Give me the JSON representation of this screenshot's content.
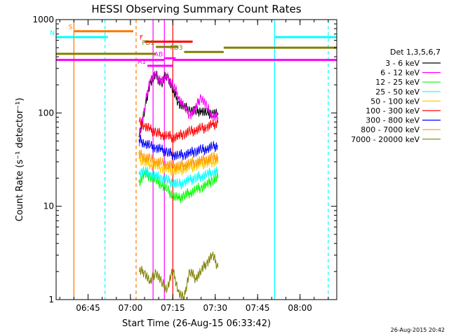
{
  "chart_data": {
    "type": "line",
    "title": "HESSI Observing Summary Count Rates",
    "xlabel": "Start Time (26-Aug-15 06:33:42)",
    "ylabel": "Count Rate (s⁻¹ detector⁻¹)",
    "y_scale": "log",
    "ylim": [
      1,
      1000
    ],
    "xlim": [
      "06:33:42",
      "08:13:00"
    ],
    "y_ticks": [
      {
        "value": 1,
        "label": "1"
      },
      {
        "value": 10,
        "label": "10"
      },
      {
        "value": 100,
        "label": "100"
      },
      {
        "value": 1000,
        "label": "1000"
      }
    ],
    "x_ticks": [
      {
        "value": "06:45",
        "label": "06:45"
      },
      {
        "value": "07:00",
        "label": "07:00"
      },
      {
        "value": "07:15",
        "label": "07:15"
      },
      {
        "value": "07:30",
        "label": "07:30"
      },
      {
        "value": "07:45",
        "label": "07:45"
      },
      {
        "value": "08:00",
        "label": "08:00"
      }
    ],
    "grid": false,
    "legend_position": "right",
    "legend_title": "Det 1,3,5,6,7",
    "series": [
      {
        "name": "3 - 6 keV",
        "color": "#000000",
        "x": [
          "07:03",
          "07:05",
          "07:07",
          "07:09",
          "07:11",
          "07:13",
          "07:15",
          "07:17",
          "07:19",
          "07:21",
          "07:23",
          "07:25",
          "07:27",
          "07:29",
          "07:31"
        ],
        "values": [
          55,
          100,
          210,
          250,
          205,
          260,
          170,
          130,
          115,
          108,
          103,
          106,
          98,
          100,
          95
        ]
      },
      {
        "name": "6 - 12 keV",
        "color": "#ff00ff",
        "x": [
          "07:03",
          "07:05",
          "07:07",
          "07:09",
          "07:11",
          "07:13",
          "07:15",
          "07:17",
          "07:19",
          "07:21",
          "07:23",
          "07:25",
          "07:27",
          "07:29",
          "07:31"
        ],
        "values": [
          45,
          105,
          230,
          250,
          225,
          240,
          200,
          150,
          115,
          95,
          110,
          150,
          115,
          93,
          90
        ]
      },
      {
        "name": "12 - 25 keV",
        "color": "#00ff00",
        "x": [
          "07:03",
          "07:05",
          "07:07",
          "07:09",
          "07:11",
          "07:13",
          "07:15",
          "07:17",
          "07:19",
          "07:21",
          "07:23",
          "07:25",
          "07:27",
          "07:29",
          "07:31"
        ],
        "values": [
          18,
          22,
          21,
          19,
          17,
          15,
          13,
          12,
          13,
          14,
          15,
          16,
          17,
          19,
          20
        ]
      },
      {
        "name": "25 - 50 keV",
        "color": "#00ffff",
        "x": [
          "07:03",
          "07:05",
          "07:07",
          "07:09",
          "07:11",
          "07:13",
          "07:15",
          "07:17",
          "07:19",
          "07:21",
          "07:23",
          "07:25",
          "07:27",
          "07:29",
          "07:31"
        ],
        "values": [
          23,
          24,
          22,
          21,
          20,
          19,
          18,
          17,
          18,
          19,
          20,
          21,
          22,
          23,
          24
        ]
      },
      {
        "name": "50 - 100 keV",
        "color": "#ffcc00",
        "x": [
          "07:03",
          "07:05",
          "07:07",
          "07:09",
          "07:11",
          "07:13",
          "07:15",
          "07:17",
          "07:19",
          "07:21",
          "07:23",
          "07:25",
          "07:27",
          "07:29",
          "07:31"
        ],
        "values": [
          32,
          30,
          28,
          27,
          26,
          25,
          24,
          24,
          25,
          26,
          27,
          28,
          29,
          30,
          31
        ]
      },
      {
        "name": "100 - 300 keV",
        "color": "#ff0000",
        "x": [
          "07:03",
          "07:05",
          "07:07",
          "07:09",
          "07:11",
          "07:13",
          "07:15",
          "07:17",
          "07:19",
          "07:21",
          "07:23",
          "07:25",
          "07:27",
          "07:29",
          "07:31"
        ],
        "values": [
          80,
          72,
          66,
          62,
          59,
          57,
          55,
          56,
          60,
          63,
          65,
          68,
          70,
          74,
          78
        ]
      },
      {
        "name": "300 - 800 keV",
        "color": "#0000ff",
        "x": [
          "07:03",
          "07:05",
          "07:07",
          "07:09",
          "07:11",
          "07:13",
          "07:15",
          "07:17",
          "07:19",
          "07:21",
          "07:23",
          "07:25",
          "07:27",
          "07:29",
          "07:31"
        ],
        "values": [
          52,
          47,
          44,
          42,
          40,
          38,
          36,
          35,
          36,
          37,
          39,
          40,
          41,
          43,
          45
        ]
      },
      {
        "name": "800 - 7000 keV",
        "color": "#ff9900",
        "x": [
          "07:03",
          "07:05",
          "07:07",
          "07:09",
          "07:11",
          "07:13",
          "07:15",
          "07:17",
          "07:19",
          "07:21",
          "07:23",
          "07:25",
          "07:27",
          "07:29",
          "07:31"
        ],
        "values": [
          36,
          34,
          32,
          30,
          29,
          28,
          27,
          27,
          28,
          29,
          30,
          31,
          32,
          33,
          34
        ]
      },
      {
        "name": "7000 - 20000 keV",
        "color": "#808000",
        "x": [
          "07:03",
          "07:05",
          "07:07",
          "07:09",
          "07:11",
          "07:13",
          "07:15",
          "07:17",
          "07:19",
          "07:21",
          "07:23",
          "07:25",
          "07:27",
          "07:29",
          "07:31"
        ],
        "values": [
          2,
          2,
          1.5,
          2,
          1.5,
          1.3,
          2,
          1.2,
          1,
          2,
          1.7,
          2,
          2.5,
          3,
          2.2
        ]
      }
    ],
    "annotation_lines": [
      {
        "name": "S",
        "color": "#ff7700",
        "dashed": false,
        "x": "06:40"
      },
      {
        "name": "N",
        "color": "#00ffff",
        "dashed": true,
        "x": "06:51"
      },
      {
        "name": "",
        "color": "#ff7700",
        "dashed": true,
        "x": "07:02"
      },
      {
        "name": "",
        "color": "#00ffff",
        "dashed": false,
        "x": "07:51"
      },
      {
        "name": "",
        "color": "#00ffff",
        "dashed": true,
        "x": "08:10"
      },
      {
        "name": "",
        "color": "#ff00ff",
        "dashed": false,
        "x": "07:08"
      },
      {
        "name": "",
        "color": "#ff00ff",
        "dashed": false,
        "x": "07:12"
      },
      {
        "name": "",
        "color": "#ff0000",
        "dashed": false,
        "x": "07:15"
      }
    ],
    "bars": [
      {
        "label": "S",
        "color": "#ff7700",
        "y": 750,
        "x_start": "06:40",
        "x_end": "07:01"
      },
      {
        "label": "N",
        "color": "#00ffff",
        "y": 650,
        "x_start": "06:33:42",
        "x_end": "06:52"
      },
      {
        "label": "",
        "color": "#00ffff",
        "y": 650,
        "x_start": "07:51",
        "x_end": "08:13"
      },
      {
        "label": "F",
        "color": "#ff0000",
        "y": 580,
        "x_start": "07:05",
        "x_end": "07:22"
      },
      {
        "label": "FD1",
        "color": "#808000",
        "y": 510,
        "x_start": "07:09",
        "x_end": "07:17"
      },
      {
        "label": "FD3",
        "color": "#808000",
        "y": 450,
        "x_start": "07:19",
        "x_end": "07:33"
      },
      {
        "label": "",
        "color": "#808000",
        "y": 430,
        "x_start": "06:33:42",
        "x_end": "07:09"
      },
      {
        "label": "",
        "color": "#808000",
        "y": 500,
        "x_start": "07:33",
        "x_end": "08:13"
      },
      {
        "label": "AB",
        "color": "#ff00ff",
        "y": 385,
        "x_start": "07:12",
        "x_end": "07:16"
      },
      {
        "label": "",
        "color": "#ff00ff",
        "y": 370,
        "x_start": "06:33:42",
        "x_end": "07:12"
      },
      {
        "label": "",
        "color": "#ff00ff",
        "y": 370,
        "x_start": "07:15",
        "x_end": "08:13"
      },
      {
        "label": "A1",
        "color": "#ff00ff",
        "y": 320,
        "x_start": "07:06",
        "x_end": "07:15"
      }
    ],
    "stamp": "26-Aug-2015 20:42"
  }
}
